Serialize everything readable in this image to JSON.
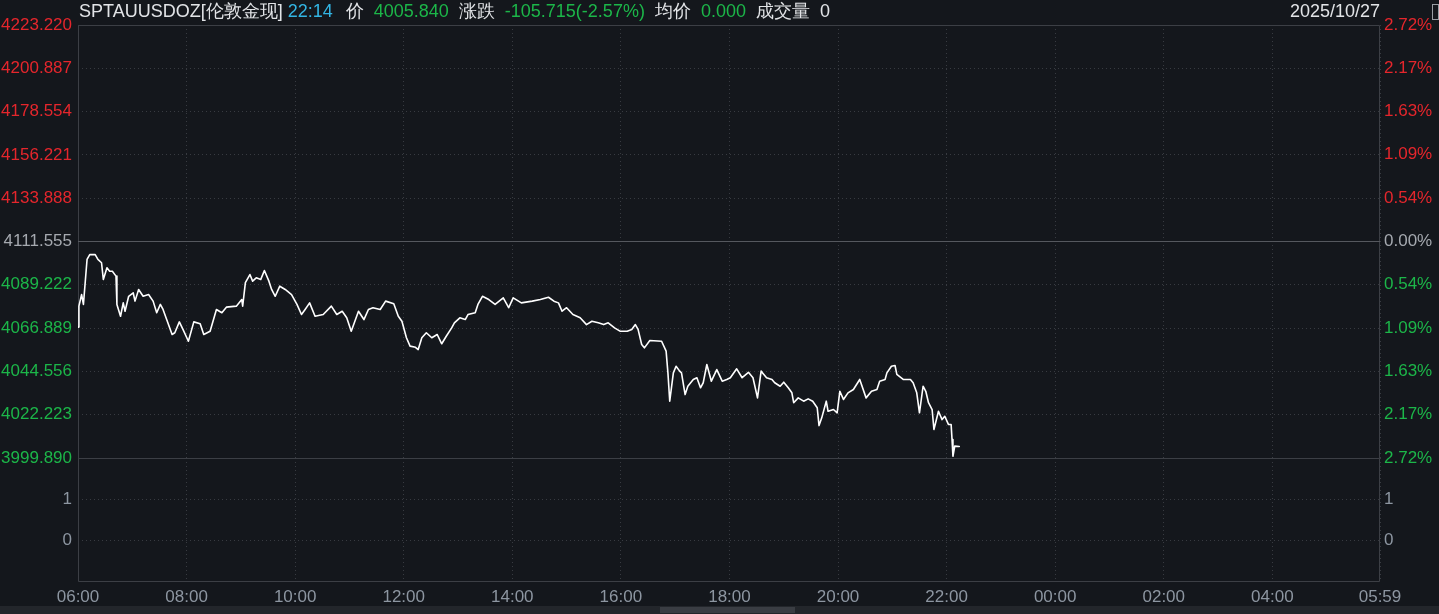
{
  "chart_data": [
    {
      "type": "line",
      "title": "SPTAUUSDOZ[伦敦金现]",
      "subtitle": "22:14",
      "annotations": [
        "价",
        "4005.840",
        "涨跌",
        "-105.715(-2.57%)",
        "均价",
        "0.000",
        "成交量",
        "0",
        "2025/10/27"
      ],
      "x": [
        "2025-10-27T06:00",
        "2025-10-27T06:01",
        "2025-10-27T06:04",
        "2025-10-27T06:06",
        "2025-10-27T06:10",
        "2025-10-27T06:13",
        "2025-10-27T06:19",
        "2025-10-27T06:22",
        "2025-10-27T06:26",
        "2025-10-27T06:28",
        "2025-10-27T06:32",
        "2025-10-27T06:35",
        "2025-10-27T06:38",
        "2025-10-27T06:42",
        "2025-10-27T06:43",
        "2025-10-27T06:47",
        "2025-10-27T06:50",
        "2025-10-27T06:52",
        "2025-10-27T06:56",
        "2025-10-27T07:01",
        "2025-10-27T07:03",
        "2025-10-27T07:07",
        "2025-10-27T07:12",
        "2025-10-27T07:18",
        "2025-10-27T07:23",
        "2025-10-27T07:27",
        "2025-10-27T07:31",
        "2025-10-27T07:34",
        "2025-10-27T07:38",
        "2025-10-27T07:44",
        "2025-10-27T07:47",
        "2025-10-27T07:52",
        "2025-10-27T07:56",
        "2025-10-27T08:02",
        "2025-10-27T08:08",
        "2025-10-27T08:15",
        "2025-10-27T08:19",
        "2025-10-27T08:26",
        "2025-10-27T08:33",
        "2025-10-27T08:39",
        "2025-10-27T08:44",
        "2025-10-27T08:55",
        "2025-10-27T09:01",
        "2025-10-27T09:02",
        "2025-10-27T09:05",
        "2025-10-27T09:10",
        "2025-10-27T09:13",
        "2025-10-27T09:17",
        "2025-10-27T09:22",
        "2025-10-27T09:26",
        "2025-10-27T09:31",
        "2025-10-27T09:34",
        "2025-10-27T09:38",
        "2025-10-27T09:43",
        "2025-10-27T09:49",
        "2025-10-27T09:56",
        "2025-10-27T10:02",
        "2025-10-27T10:07",
        "2025-10-27T10:11",
        "2025-10-27T10:16",
        "2025-10-27T10:22",
        "2025-10-27T10:31",
        "2025-10-27T10:40",
        "2025-10-27T10:46",
        "2025-10-27T10:52",
        "2025-10-27T10:57",
        "2025-10-27T11:02",
        "2025-10-27T11:10",
        "2025-10-27T11:16",
        "2025-10-27T11:21",
        "2025-10-27T11:26",
        "2025-10-27T11:34",
        "2025-10-27T11:40",
        "2025-10-27T11:49",
        "2025-10-27T11:54",
        "2025-10-27T11:58",
        "2025-10-27T12:03",
        "2025-10-27T12:07",
        "2025-10-27T12:13",
        "2025-10-27T12:16",
        "2025-10-27T12:20",
        "2025-10-27T12:25",
        "2025-10-27T12:31",
        "2025-10-27T12:37",
        "2025-10-27T12:42",
        "2025-10-27T12:47",
        "2025-10-27T12:53",
        "2025-10-27T12:56",
        "2025-10-27T13:02",
        "2025-10-27T13:08",
        "2025-10-27T13:11",
        "2025-10-27T13:19",
        "2025-10-27T13:22",
        "2025-10-27T13:27",
        "2025-10-27T13:34",
        "2025-10-27T13:41",
        "2025-10-27T13:50",
        "2025-10-27T13:56",
        "2025-10-27T14:01",
        "2025-10-27T14:10",
        "2025-10-27T14:22",
        "2025-10-27T14:31",
        "2025-10-27T14:40",
        "2025-10-27T14:46",
        "2025-10-27T14:51",
        "2025-10-27T14:55",
        "2025-10-27T15:00",
        "2025-10-27T15:07",
        "2025-10-27T15:15",
        "2025-10-27T15:22",
        "2025-10-27T15:28",
        "2025-10-27T15:35",
        "2025-10-27T15:41",
        "2025-10-27T15:46",
        "2025-10-27T15:53",
        "2025-10-27T15:59",
        "2025-10-27T16:07",
        "2025-10-27T16:12",
        "2025-10-27T16:16",
        "2025-10-27T16:19",
        "2025-10-27T16:23",
        "2025-10-27T16:26",
        "2025-10-27T16:32",
        "2025-10-27T16:45",
        "2025-10-27T16:50",
        "2025-10-27T16:52",
        "2025-10-27T16:54",
        "2025-10-27T16:58",
        "2025-10-27T17:01",
        "2025-10-27T17:05",
        "2025-10-27T17:07",
        "2025-10-27T17:11",
        "2025-10-27T17:14",
        "2025-10-27T17:20",
        "2025-10-27T17:24",
        "2025-10-27T17:28",
        "2025-10-27T17:31",
        "2025-10-27T17:35",
        "2025-10-27T17:40",
        "2025-10-27T17:46",
        "2025-10-27T17:52",
        "2025-10-27T17:57",
        "2025-10-27T18:01",
        "2025-10-27T18:08",
        "2025-10-27T18:14",
        "2025-10-27T18:21",
        "2025-10-27T18:26",
        "2025-10-27T18:31",
        "2025-10-27T18:35",
        "2025-10-27T18:41",
        "2025-10-27T18:47",
        "2025-10-27T18:50",
        "2025-10-27T18:56",
        "2025-10-27T19:00",
        "2025-10-27T19:05",
        "2025-10-27T19:09",
        "2025-10-27T19:11",
        "2025-10-27T19:16",
        "2025-10-27T19:22",
        "2025-10-27T19:27",
        "2025-10-27T19:32",
        "2025-10-27T19:37",
        "2025-10-27T19:39",
        "2025-10-27T19:42",
        "2025-10-27T19:47",
        "2025-10-27T19:49",
        "2025-10-27T19:55",
        "2025-10-27T19:59",
        "2025-10-27T20:02",
        "2025-10-27T20:06",
        "2025-10-27T20:11",
        "2025-10-27T20:17",
        "2025-10-27T20:24",
        "2025-10-27T20:31",
        "2025-10-27T20:37",
        "2025-10-27T20:43",
        "2025-10-27T20:46",
        "2025-10-27T20:52",
        "2025-10-27T20:54",
        "2025-10-27T20:59",
        "2025-10-27T21:03",
        "2025-10-27T21:05",
        "2025-10-27T21:12",
        "2025-10-27T21:20",
        "2025-10-27T21:23",
        "2025-10-27T21:27",
        "2025-10-27T21:30",
        "2025-10-27T21:34",
        "2025-10-27T21:37",
        "2025-10-27T21:40",
        "2025-10-27T21:44",
        "2025-10-27T21:46",
        "2025-10-27T21:51",
        "2025-10-27T21:55",
        "2025-10-27T21:58",
        "2025-10-27T22:02",
        "2025-10-27T22:05",
        "2025-10-27T22:06",
        "2025-10-27T22:07",
        "2025-10-27T22:09",
        "2025-10-27T22:14"
      ],
      "series": [
        {
          "color": "#ffffff",
          "values": [
            4067.4,
            4078.2,
            4084.2,
            4079.1,
            4102.3,
            4104.8,
            4104.8,
            4102.3,
            4100.6,
            4092.0,
            4098.0,
            4096.2,
            4096.2,
            4093.7,
            4079.1,
            4073.0,
            4079.9,
            4075.6,
            4083.3,
            4085.1,
            4080.8,
            4086.8,
            4083.3,
            4084.2,
            4080.8,
            4074.8,
            4079.1,
            4076.5,
            4071.3,
            4063.6,
            4064.5,
            4070.1,
            4066.2,
            4060.1,
            4070.1,
            4069.1,
            4063.6,
            4065.3,
            4076.5,
            4074.8,
            4077.7,
            4078.2,
            4081.6,
            4078.2,
            4090.3,
            4094.5,
            4091.1,
            4092.8,
            4092.0,
            4096.6,
            4091.1,
            4086.8,
            4083.3,
            4088.5,
            4086.8,
            4084.2,
            4079.1,
            4073.9,
            4076.5,
            4079.9,
            4073.0,
            4073.9,
            4078.2,
            4073.9,
            4075.6,
            4072.2,
            4065.3,
            4075.6,
            4071.3,
            4076.5,
            4077.4,
            4076.5,
            4080.8,
            4079.4,
            4073.0,
            4070.4,
            4061.9,
            4057.6,
            4057.0,
            4055.8,
            4061.9,
            4064.5,
            4061.9,
            4063.6,
            4058.8,
            4062.7,
            4067.0,
            4069.6,
            4072.2,
            4071.3,
            4073.9,
            4074.8,
            4079.1,
            4083.3,
            4081.6,
            4079.1,
            4082.5,
            4077.4,
            4082.5,
            4079.9,
            4080.8,
            4081.6,
            4082.8,
            4080.8,
            4079.9,
            4075.6,
            4077.4,
            4073.9,
            4072.2,
            4068.7,
            4070.4,
            4069.6,
            4068.7,
            4069.6,
            4067.0,
            4065.3,
            4065.3,
            4066.2,
            4068.7,
            4066.2,
            4058.4,
            4056.7,
            4060.5,
            4060.1,
            4055.0,
            4043.8,
            4029.2,
            4043.8,
            4047.2,
            4044.7,
            4043.8,
            4032.6,
            4036.9,
            4040.4,
            4041.3,
            4036.1,
            4038.7,
            4048.1,
            4039.5,
            4045.5,
            4039.5,
            4040.4,
            4041.3,
            4045.9,
            4041.3,
            4044.1,
            4041.3,
            4030.9,
            4044.7,
            4041.3,
            4040.4,
            4038.7,
            4036.9,
            4039.0,
            4036.1,
            4033.5,
            4028.4,
            4030.9,
            4029.2,
            4030.4,
            4029.2,
            4025.8,
            4016.6,
            4020.6,
            4029.2,
            4024.0,
            4024.9,
            4023.2,
            4034.3,
            4030.1,
            4033.5,
            4035.2,
            4040.4,
            4030.9,
            4034.3,
            4035.2,
            4039.5,
            4040.4,
            4043.8,
            4047.2,
            4047.6,
            4043.0,
            4040.4,
            4040.4,
            4038.7,
            4033.5,
            4023.2,
            4036.9,
            4034.3,
            4028.4,
            4024.9,
            4014.6,
            4024.0,
            4019.7,
            4021.4,
            4017.2,
            4017.2,
            4009.4,
            4000.8,
            4006.0,
            4005.8
          ]
        }
      ],
      "xlim": [
        "2025-10-27T06:00",
        "2025-10-28T05:59"
      ],
      "xticks": [
        "2025-10-27T06:00",
        "2025-10-27T08:00",
        "2025-10-27T10:00",
        "2025-10-27T12:00",
        "2025-10-27T14:00",
        "2025-10-27T16:00",
        "2025-10-27T18:00",
        "2025-10-27T20:00",
        "2025-10-27T22:00",
        "2025-10-28T00:00",
        "2025-10-28T02:00",
        "2025-10-28T04:00",
        "2025-10-28T05:59"
      ],
      "ylim": [
        3999.89,
        4223.22
      ],
      "yticks": [
        {
          "value": 3999.89,
          "label": "3999.890"
        },
        4022.223,
        4044.556,
        4066.889,
        4089.222,
        4111.555,
        4133.888,
        4156.221,
        4178.554,
        4200.887,
        {
          "value": 4223.22,
          "label": "4223.220"
        }
      ],
      "y2lim": [
        -2.72,
        2.72
      ],
      "y2ticks": [
        {
          "value": -2.72,
          "label": "2.72%"
        },
        {
          "value": -2.17,
          "label": "2.17%"
        },
        {
          "value": -1.63,
          "label": "1.63%"
        },
        {
          "value": -1.09,
          "label": "1.09%"
        },
        {
          "value": -0.54,
          "label": "0.54%"
        },
        {
          "value": 0,
          "label": "0.00%"
        },
        {
          "value": 0.54,
          "label": "0.54%"
        },
        {
          "value": 1.09,
          "label": "1.09%"
        },
        {
          "value": 1.63,
          "label": "1.63%"
        },
        {
          "value": 2.17,
          "label": "2.17%"
        },
        {
          "value": 2.72,
          "label": "2.72%"
        }
      ],
      "ref_lines": [
        {
          "axis": "y",
          "value": 4111.555,
          "color": "#55585e"
        }
      ],
      "grid": true,
      "marker": "none",
      "line_style": "solid",
      "tick_labels": "y"
    },
    {
      "type": "bar",
      "xlim": [
        "2025-10-27T06:00",
        "2025-10-28T05:59"
      ],
      "xticks": [
        {
          "value": "2025-10-27T06:00",
          "label": "06:00"
        },
        {
          "value": "2025-10-27T08:00",
          "label": "08:00"
        },
        {
          "value": "2025-10-27T10:00",
          "label": "10:00"
        },
        {
          "value": "2025-10-27T12:00",
          "label": "12:00"
        },
        {
          "value": "2025-10-27T14:00",
          "label": "14:00"
        },
        {
          "value": "2025-10-27T16:00",
          "label": "16:00"
        },
        {
          "value": "2025-10-27T18:00",
          "label": "18:00"
        },
        {
          "value": "2025-10-27T20:00",
          "label": "20:00"
        },
        {
          "value": "2025-10-27T22:00",
          "label": "22:00"
        },
        {
          "value": "2025-10-28T00:00",
          "label": "00:00"
        },
        {
          "value": "2025-10-28T02:00",
          "label": "02:00"
        },
        {
          "value": "2025-10-28T04:00",
          "label": "04:00"
        },
        {
          "value": "2025-10-28T05:59",
          "label": "05:59"
        }
      ],
      "ylim": [
        -1,
        2
      ],
      "yticks": [
        0,
        1
      ],
      "y2lim": [
        -1,
        2
      ],
      "y2ticks": [
        0,
        1
      ],
      "grid": true
    }
  ]
}
